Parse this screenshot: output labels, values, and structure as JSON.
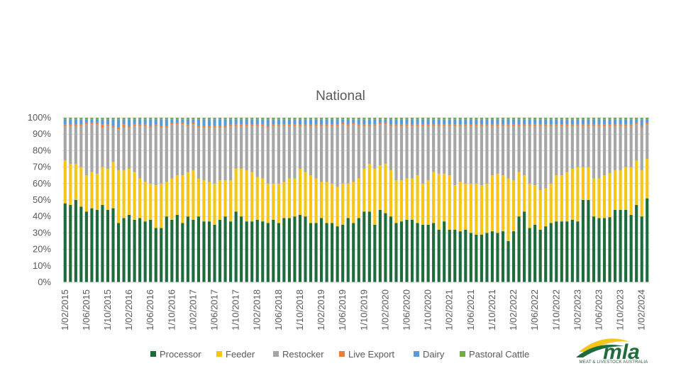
{
  "chart_data": {
    "type": "bar",
    "stacked": "percent",
    "title": "National",
    "ylim": [
      0,
      100
    ],
    "yticks": [
      "0%",
      "10%",
      "20%",
      "30%",
      "40%",
      "50%",
      "60%",
      "70%",
      "80%",
      "90%",
      "100%"
    ],
    "x_labels": [
      "1/02/2015",
      "1/06/2015",
      "1/10/2015",
      "1/02/2016",
      "1/06/2016",
      "1/10/2016",
      "1/02/2017",
      "1/06/2017",
      "1/10/2017",
      "1/02/2018",
      "1/06/2018",
      "1/10/2018",
      "1/02/2019",
      "1/06/2019",
      "1/10/2019",
      "1/02/2020",
      "1/06/2020",
      "1/10/2020",
      "1/02/2021",
      "1/06/2021",
      "1/10/2021",
      "1/02/2022",
      "1/06/2022",
      "1/10/2022",
      "1/02/2023",
      "1/06/2023",
      "1/10/2023",
      "1/02/2024"
    ],
    "legend_position": "bottom",
    "grid": true,
    "series": [
      {
        "name": "Processor",
        "color": "#1e6b3c",
        "values": [
          48,
          47,
          50,
          46,
          43,
          45,
          44,
          47,
          44,
          45,
          36,
          39,
          41,
          38,
          39,
          37,
          38,
          33,
          33,
          40,
          38,
          41,
          36,
          40,
          38,
          40,
          37,
          37,
          35,
          38,
          40,
          37,
          43,
          40,
          37,
          37,
          38,
          37,
          36,
          38,
          36,
          39,
          39,
          40,
          41,
          40,
          36,
          36,
          39,
          36,
          36,
          34,
          35,
          39,
          36,
          39,
          43,
          43,
          35,
          44,
          42,
          40,
          36,
          37,
          38,
          38,
          36,
          35,
          35,
          36,
          32,
          37,
          32,
          32,
          31,
          32,
          30,
          29,
          29,
          30,
          31,
          30,
          31,
          25,
          31,
          40,
          43,
          33,
          35,
          32,
          34,
          36,
          37,
          37,
          37,
          38,
          37,
          50,
          50,
          40,
          39,
          39,
          40,
          44,
          44,
          44,
          41,
          47,
          40,
          51
        ]
      },
      {
        "name": "Feeder",
        "color": "#f5c518",
        "values": [
          26,
          25,
          22,
          24,
          22,
          22,
          22,
          23,
          25,
          28,
          32,
          29,
          28,
          29,
          24,
          24,
          22,
          26,
          27,
          21,
          25,
          24,
          29,
          27,
          30,
          23,
          25,
          24,
          25,
          24,
          22,
          25,
          26,
          29,
          31,
          30,
          26,
          26,
          24,
          22,
          24,
          22,
          24,
          23,
          28,
          27,
          29,
          27,
          22,
          25,
          24,
          24,
          25,
          21,
          25,
          24,
          26,
          29,
          34,
          27,
          30,
          28,
          26,
          25,
          25,
          25,
          29,
          25,
          27,
          31,
          34,
          29,
          33,
          27,
          30,
          28,
          30,
          31,
          30,
          30,
          34,
          36,
          34,
          38,
          31,
          27,
          22,
          27,
          24,
          24,
          23,
          24,
          28,
          28,
          30,
          31,
          33,
          20,
          20,
          23,
          24,
          26,
          27,
          24,
          24,
          26,
          29,
          27,
          28,
          24
        ]
      },
      {
        "name": "Restocker",
        "color": "#a6a6a6",
        "values": [
          21,
          23,
          23,
          25,
          31,
          29,
          30,
          24,
          26,
          21,
          25,
          26,
          25,
          28,
          32,
          34,
          34,
          36,
          34,
          33,
          33,
          31,
          31,
          28,
          28,
          31,
          32,
          33,
          34,
          32,
          32,
          33,
          26,
          26,
          27,
          28,
          31,
          32,
          34,
          35,
          35,
          34,
          32,
          32,
          26,
          28,
          30,
          32,
          34,
          34,
          35,
          37,
          36,
          35,
          35,
          32,
          26,
          23,
          26,
          25,
          24,
          27,
          33,
          33,
          32,
          32,
          30,
          35,
          33,
          28,
          29,
          29,
          30,
          36,
          34,
          35,
          35,
          35,
          36,
          35,
          30,
          29,
          30,
          32,
          33,
          28,
          30,
          35,
          36,
          39,
          38,
          35,
          30,
          30,
          28,
          26,
          25,
          25,
          25,
          32,
          32,
          30,
          29,
          27,
          27,
          25,
          25,
          22,
          26,
          21
        ]
      },
      {
        "name": "Live Export",
        "color": "#ed7d31",
        "values": [
          1,
          1,
          1,
          1,
          1,
          1,
          1,
          2,
          1,
          1,
          1,
          2,
          1,
          1,
          1,
          1,
          1,
          1,
          1,
          1,
          1,
          1,
          1,
          1,
          1,
          1,
          1,
          1,
          1,
          1,
          1,
          1,
          1,
          1,
          1,
          1,
          1,
          1,
          1,
          1,
          1,
          1,
          1,
          1,
          1,
          1,
          1,
          1,
          1,
          1,
          1,
          1,
          1,
          1,
          1,
          1,
          1,
          1,
          1,
          1,
          1,
          1,
          1,
          1,
          1,
          1,
          1,
          1,
          1,
          1,
          1,
          1,
          1,
          1,
          1,
          1,
          1,
          1,
          1,
          1,
          1,
          1,
          1,
          1,
          1,
          1,
          1,
          1,
          1,
          1,
          1,
          1,
          1,
          1,
          1,
          1,
          1,
          1,
          1,
          1,
          1,
          1,
          1,
          1,
          1,
          1,
          1,
          1,
          1,
          1
        ]
      },
      {
        "name": "Dairy",
        "color": "#5b9bd5",
        "values": [
          3,
          3,
          3,
          3,
          2,
          2,
          2,
          3,
          3,
          4,
          5,
          3,
          4,
          3,
          3,
          3,
          4,
          3,
          4,
          4,
          2,
          2,
          2,
          3,
          2,
          4,
          4,
          4,
          4,
          4,
          4,
          3,
          3,
          3,
          3,
          3,
          3,
          3,
          4,
          3,
          3,
          3,
          3,
          3,
          3,
          3,
          3,
          3,
          3,
          3,
          3,
          3,
          2,
          3,
          2,
          3,
          3,
          3,
          3,
          2,
          2,
          3,
          3,
          3,
          3,
          3,
          3,
          3,
          3,
          3,
          3,
          3,
          3,
          3,
          3,
          3,
          3,
          3,
          3,
          3,
          3,
          3,
          3,
          3,
          3,
          3,
          3,
          3,
          3,
          3,
          3,
          3,
          3,
          3,
          3,
          3,
          3,
          3,
          3,
          3,
          3,
          3,
          3,
          3,
          3,
          3,
          3,
          2,
          4,
          2
        ]
      },
      {
        "name": "Pastoral Cattle",
        "color": "#70ad47",
        "values": [
          1,
          1,
          1,
          1,
          1,
          1,
          1,
          1,
          1,
          1,
          1,
          1,
          1,
          1,
          1,
          1,
          1,
          1,
          1,
          1,
          1,
          1,
          1,
          1,
          1,
          1,
          1,
          1,
          1,
          1,
          1,
          1,
          1,
          1,
          1,
          1,
          1,
          1,
          1,
          1,
          1,
          1,
          1,
          1,
          1,
          1,
          1,
          1,
          1,
          1,
          1,
          1,
          1,
          1,
          1,
          1,
          1,
          1,
          1,
          1,
          1,
          1,
          1,
          1,
          1,
          1,
          1,
          1,
          1,
          1,
          1,
          1,
          1,
          1,
          1,
          1,
          1,
          1,
          1,
          1,
          1,
          1,
          1,
          1,
          1,
          1,
          1,
          1,
          1,
          1,
          1,
          1,
          1,
          1,
          1,
          1,
          1,
          1,
          1,
          1,
          1,
          1,
          1,
          1,
          1,
          1,
          1,
          1,
          1,
          1
        ]
      }
    ]
  },
  "logo": {
    "text": "mla",
    "caption": "MEAT & LIVESTOCK AUSTRALIA",
    "green": "#1e6b3c",
    "yellow": "#f5c518"
  }
}
